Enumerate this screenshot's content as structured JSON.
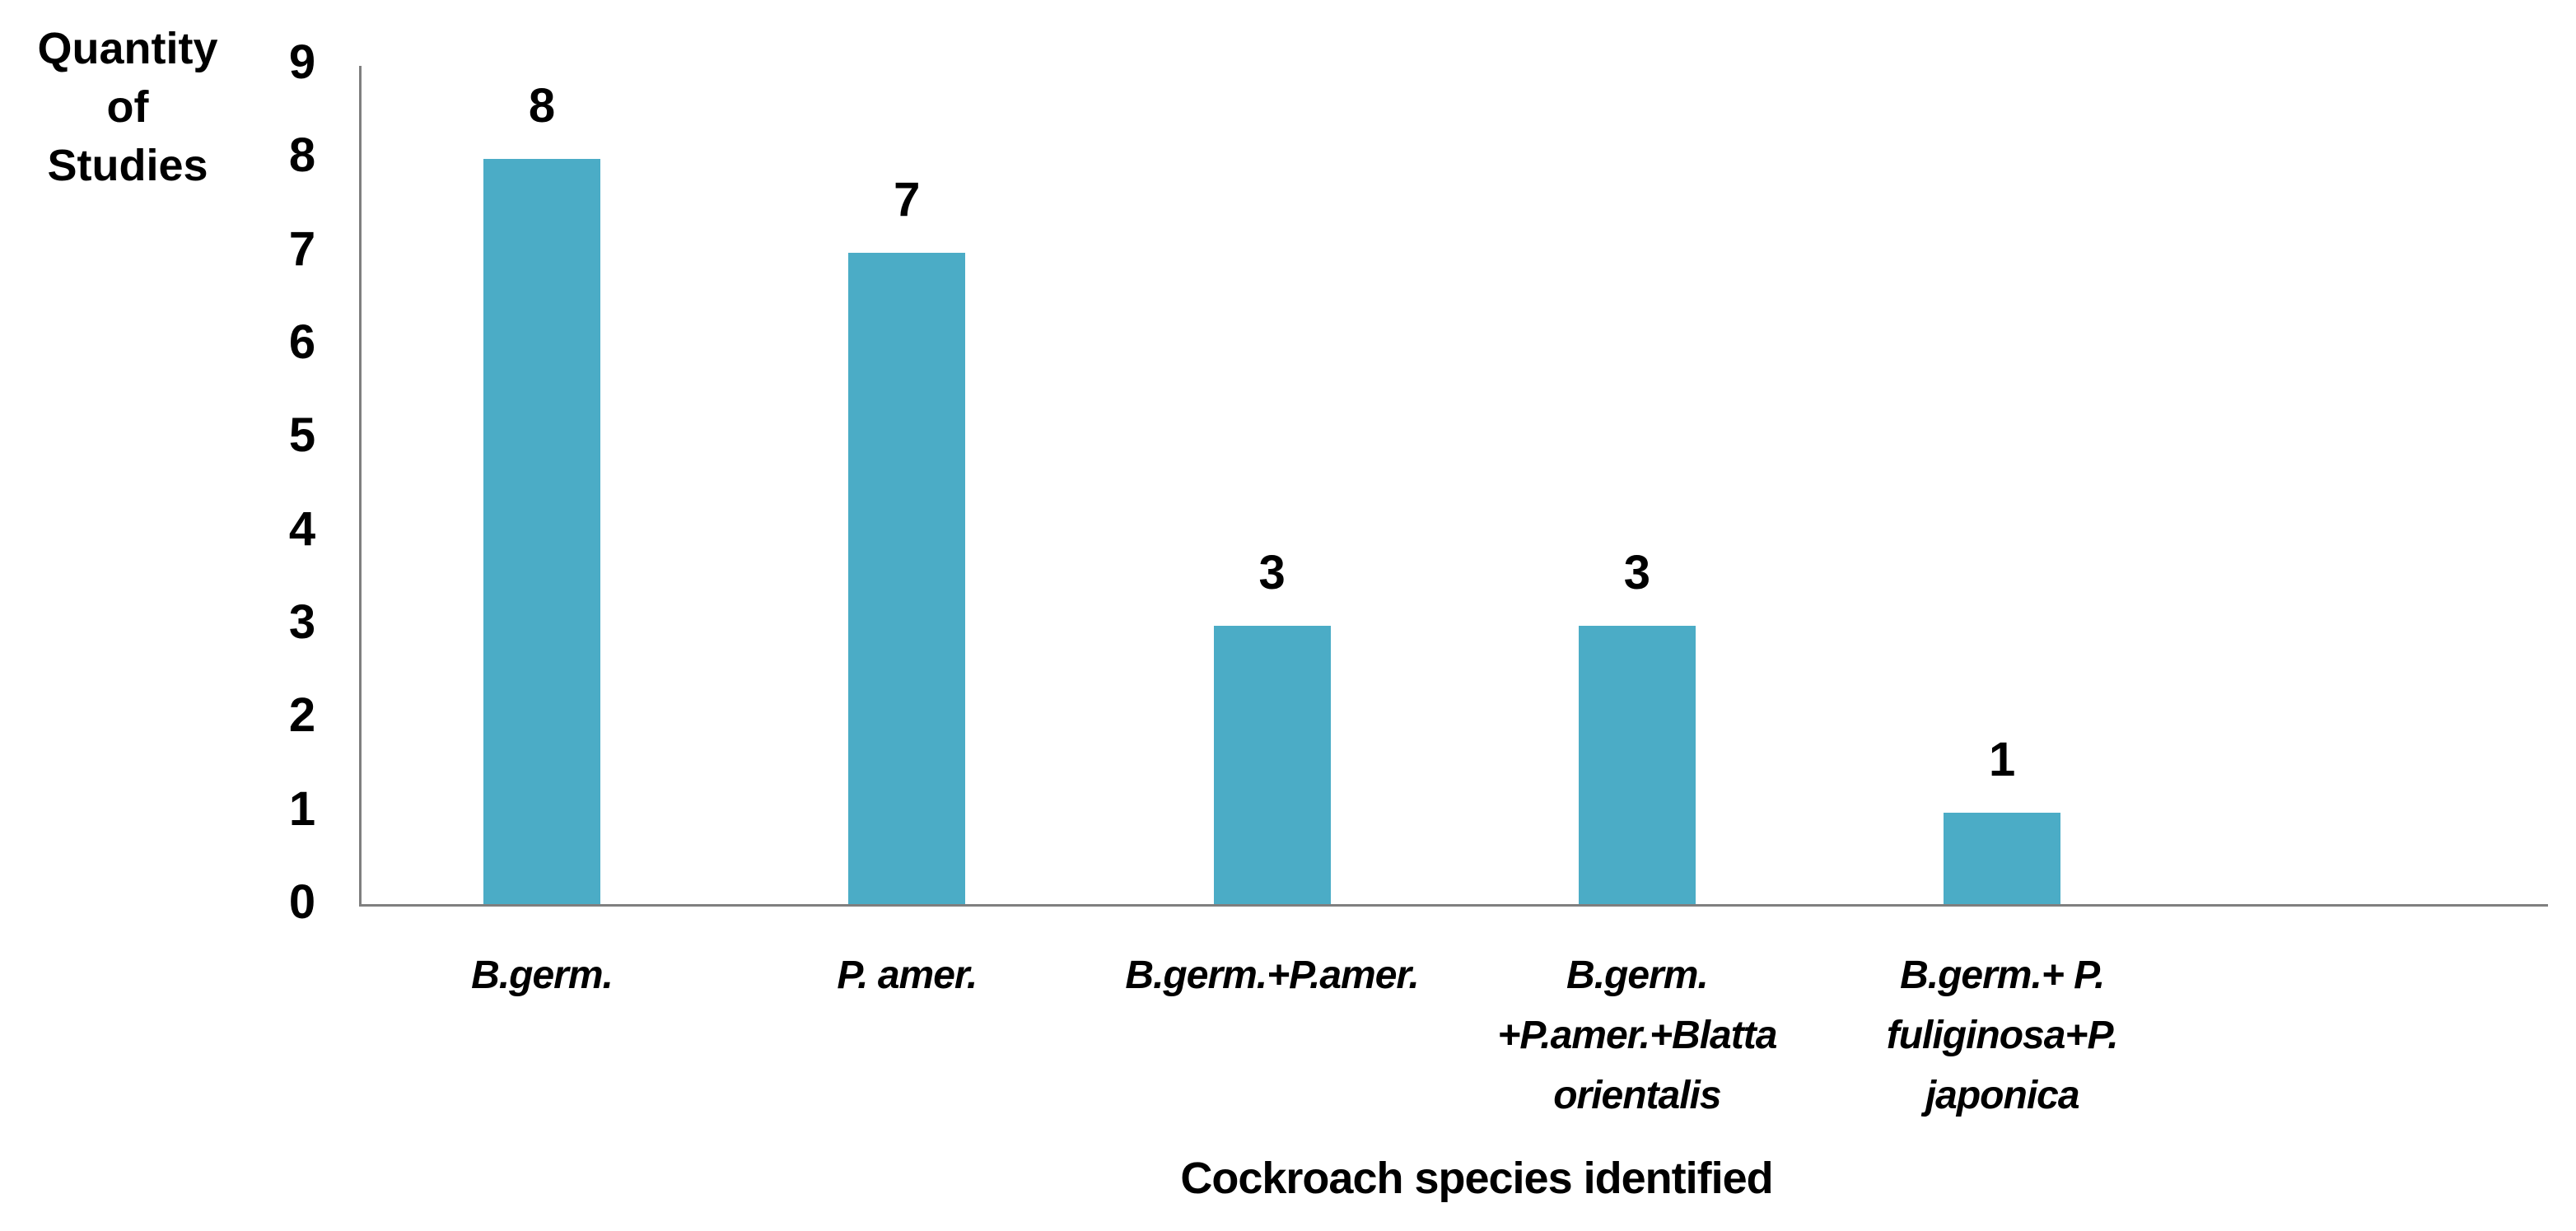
{
  "chart_data": {
    "type": "bar",
    "title": "",
    "xlabel": "Cockroach species identified",
    "ylabel": "Quantity of Studies",
    "ylabel_lines": [
      "Quantity",
      "of",
      "Studies"
    ],
    "categories": [
      "B.germ.",
      "P. amer.",
      "B.germ.+P.amer.",
      "B.germ. +P.amer.+Blatta orientalis",
      "B.germ.+ P. fuliginosa+P. japonica"
    ],
    "category_lines": [
      [
        "B.germ."
      ],
      [
        "P. amer."
      ],
      [
        "B.germ.+P.amer."
      ],
      [
        "B.germ.",
        "+P.amer.+Blatta",
        "orientalis"
      ],
      [
        "B.germ.+ P.",
        "fuliginosa+P.",
        "japonica"
      ]
    ],
    "values": [
      8,
      7,
      3,
      3,
      1
    ],
    "data_labels": [
      "8",
      "7",
      "3",
      "3",
      "1"
    ],
    "ylim": [
      0,
      9
    ],
    "yticks": [
      0,
      1,
      2,
      3,
      4,
      5,
      6,
      7,
      8,
      9
    ],
    "ytick_labels": [
      "0",
      "1",
      "2",
      "3",
      "4",
      "5",
      "6",
      "7",
      "8",
      "9"
    ],
    "grid": false,
    "legend": null,
    "bar_color": "#4BACC6",
    "axis_color": "#7F7F7F"
  }
}
